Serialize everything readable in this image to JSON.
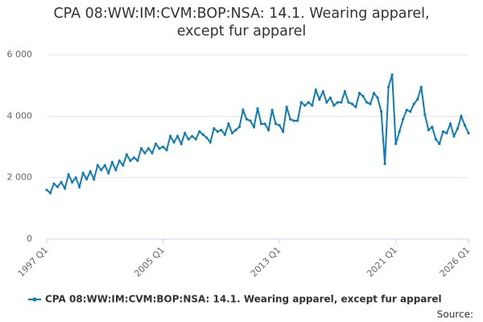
{
  "chart_data": {
    "type": "line",
    "title": "CPA 08:WW:IM:CVM:BOP:NSA: 14.1. Wearing apparel, except fur apparel",
    "source": "Source:",
    "categories": [
      "1997 Q1",
      null,
      null,
      null,
      null,
      null,
      null,
      null,
      null,
      null,
      null,
      null,
      null,
      null,
      null,
      null,
      null,
      null,
      null,
      null,
      null,
      null,
      null,
      null,
      null,
      null,
      null,
      null,
      null,
      null,
      null,
      null,
      "2005 Q1",
      null,
      null,
      null,
      null,
      null,
      null,
      null,
      null,
      null,
      null,
      null,
      null,
      null,
      null,
      null,
      null,
      null,
      null,
      null,
      null,
      null,
      null,
      null,
      null,
      null,
      null,
      null,
      null,
      null,
      null,
      null,
      "2013 Q1",
      null,
      null,
      null,
      null,
      null,
      null,
      null,
      null,
      null,
      null,
      null,
      null,
      null,
      null,
      null,
      null,
      null,
      null,
      null,
      null,
      null,
      null,
      null,
      null,
      null,
      null,
      null,
      null,
      null,
      null,
      null,
      "2021 Q1",
      null,
      null,
      null,
      null,
      null,
      null,
      null,
      null,
      null,
      null,
      null,
      null,
      null,
      null,
      null,
      null,
      null,
      null,
      null,
      "2026 Q1"
    ],
    "series": [
      {
        "name": "CPA 08:WW:IM:CVM:BOP:NSA: 14.1. Wearing apparel, except fur apparel",
        "color": "#0f7cb8",
        "values": [
          1600,
          1500,
          1800,
          1700,
          1850,
          1650,
          2100,
          1850,
          2000,
          1700,
          2150,
          1950,
          2200,
          1950,
          2400,
          2250,
          2400,
          2150,
          2500,
          2250,
          2550,
          2400,
          2750,
          2550,
          2650,
          2550,
          2950,
          2800,
          2950,
          2800,
          3100,
          2950,
          3000,
          2900,
          3350,
          3150,
          3350,
          3100,
          3450,
          3250,
          3350,
          3250,
          3500,
          3400,
          3300,
          3150,
          3600,
          3500,
          3550,
          3400,
          3750,
          3450,
          3550,
          3650,
          4200,
          3900,
          3850,
          3650,
          4250,
          3750,
          3750,
          3550,
          4200,
          3750,
          3700,
          3500,
          4300,
          3900,
          3850,
          3850,
          4450,
          4350,
          4450,
          4350,
          4850,
          4550,
          4800,
          4450,
          4600,
          4350,
          4450,
          4450,
          4800,
          4450,
          4400,
          4300,
          4750,
          4650,
          4450,
          4400,
          4750,
          4600,
          4150,
          2450,
          4950,
          5350,
          3100,
          3500,
          3900,
          4200,
          4150,
          4400,
          4550,
          4950,
          4050,
          3550,
          3650,
          3250,
          3100,
          3500,
          3450,
          3750,
          3350,
          3600,
          4000,
          3700,
          3450
        ]
      }
    ],
    "ylim": [
      0,
      6000
    ],
    "yticks": [
      0,
      {
        "value": 2000,
        "label": "2 000"
      },
      {
        "value": 4000,
        "label": "4 000"
      },
      {
        "value": 6000,
        "label": "6 000"
      }
    ],
    "grid": true
  }
}
